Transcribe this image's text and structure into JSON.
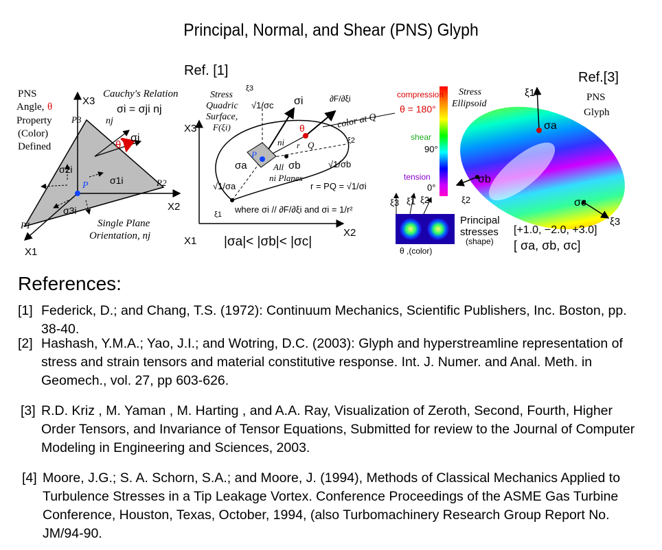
{
  "title": "Principal, Normal, and Shear (PNS) Glyph",
  "ref_labels": {
    "left": "Ref. [1]",
    "right": "Ref.[3]"
  },
  "figure1": {
    "pns_line1": "PNS",
    "pns_line2": "Angle,",
    "theta": "θ",
    "pns_line3": "Property",
    "pns_line4": "(Color)",
    "pns_line5": "Defined",
    "cauchy_title": "Cauchy's Relation",
    "cauchy_eq": "σi = σji nj",
    "x1": "X1",
    "x2": "X2",
    "x3": "X3",
    "p1": "P1",
    "p2": "P2",
    "p3": "P3",
    "nj": "nj",
    "sigma_i": "σi",
    "theta_label": "θ",
    "sigma_2i": "σ2i",
    "sigma_1i": "σ1i",
    "sigma_3i": "σ3i",
    "P": "P",
    "single_plane": "Single Plane",
    "orientation": "Orientation, nj"
  },
  "figure2": {
    "stress1": "Stress",
    "stress2": "Quadric",
    "stress3": "Surface,",
    "stress4": "F(ξi)",
    "xi3": "ξ3",
    "xi2": "ξ2",
    "xi1": "ξ1",
    "x3": "X3",
    "x2": "X2",
    "x1": "X1",
    "sqrt_c": "√1/σc",
    "sigma_i": "σi",
    "dF": "∂F/∂ξi",
    "color_at_q": "color at Q",
    "theta": "θ",
    "Q": "Q",
    "ni": "ni",
    "r": "r",
    "P": "P",
    "sigma_a": "σa",
    "sigma_b": "σb",
    "all": "All",
    "planes": "ni Planes",
    "sqrt_b": "√1/σb",
    "sqrt_a": "√1/σa",
    "r_eq": "r = PQ = √1/σi",
    "where": "where σi // ∂F/∂ξi and σi = 1/r²",
    "ordering": "|σa|< |σb|< |σc|"
  },
  "figure3": {
    "compression": "compression",
    "theta180": "θ = 180°",
    "shear": "shear",
    "deg90": "90°",
    "tension": "tension",
    "deg0": "0°",
    "stress_ellipsoid1": "Stress",
    "stress_ellipsoid2": "Ellipsoid",
    "xi3": "ξ3",
    "xi1": "ξ1",
    "xi2": "ξ2",
    "theta_color": "θ ,(color)",
    "principal": "Principal",
    "stresses": "stresses",
    "shape": "(shape)",
    "vector": "[+1.0, −2.0, +3.0]",
    "sigma_vec": "[ σa, σb, σc]",
    "pns1": "PNS",
    "pns2": "Glyph",
    "xi1_top": "ξ1",
    "xi3_right": "ξ3",
    "sig_a": "σa",
    "sig_b": "σb",
    "sig_c": "σc"
  },
  "references_heading": "References:",
  "references": [
    {
      "num": "[1]",
      "text": "Federick, D.; and Chang, T.S. (1972): Continuum Mechanics, Scientific Publishers, Inc. Boston, pp. 38-40."
    },
    {
      "num": "[2]",
      "text": "Hashash, Y.M.A.; Yao, J.I.; and Wotring, D.C. (2003): Glyph and hyperstreamline representation of stress and strain tensors and material constitutive response. Int. J. Numer. and Anal. Meth. in Geomech., vol. 27, pp 603-626."
    },
    {
      "num": "[3]",
      "text": "R.D. Kriz , M. Yaman , M. Harting , and A.A. Ray, Visualization of Zeroth, Second, Fourth, Higher Order Tensors, and Invariance of Tensor Equations, Submitted for review to the Journal of Computer Modeling in Engineering and Sciences, 2003."
    },
    {
      "num": "[4]",
      "text": "Moore, J.G.; S. A. Schorn, S.A.; and Moore, J. (1994), Methods of Classical Mechanics Applied to Turbulence Stresses in a Tip Leakage Vortex. Conference Proceedings of the ASME Gas Turbine Conference, Houston, Texas, October, 1994, (also Turbomachinery Research Group Report No. JM/94-90."
    }
  ]
}
